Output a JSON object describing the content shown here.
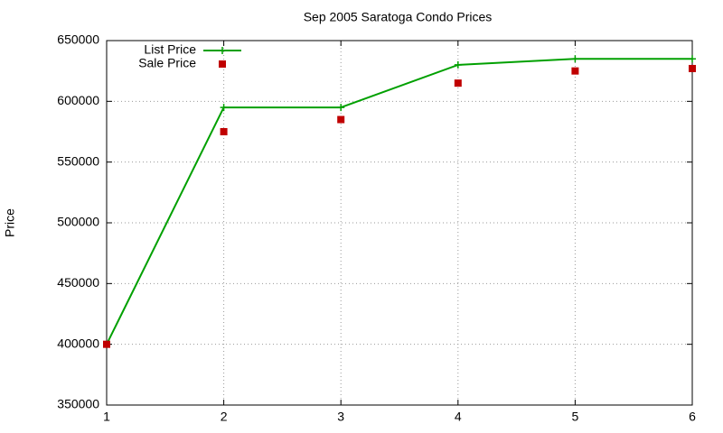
{
  "chart_data": {
    "type": "line",
    "title": "Sep 2005 Saratoga Condo Prices",
    "y_label": "Price",
    "x": [
      1,
      2,
      3,
      4,
      5,
      6
    ],
    "series": [
      {
        "name": "List Price",
        "color": "#00a000",
        "style": "linespoints",
        "values": [
          400000,
          595000,
          595000,
          630000,
          635000,
          635000
        ]
      },
      {
        "name": "Sale Price",
        "color": "#c00000",
        "style": "points",
        "values": [
          400000,
          575000,
          585000,
          615000,
          625000,
          627000
        ]
      }
    ],
    "xlim": [
      1,
      6
    ],
    "xticks": [
      1,
      2,
      3,
      4,
      5,
      6
    ],
    "ylim": [
      350000,
      650000
    ],
    "yticks": [
      350000,
      400000,
      450000,
      500000,
      550000,
      600000,
      650000
    ],
    "grid": true,
    "legend": "top-left"
  }
}
